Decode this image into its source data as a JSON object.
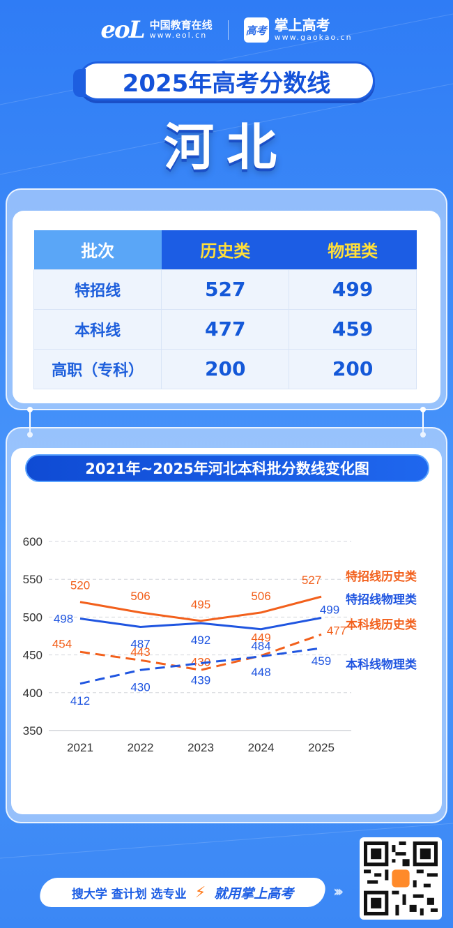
{
  "header": {
    "eol_mark": "eoL",
    "eol_cn": "中国教育在线",
    "eol_en": "www.eol.cn",
    "gk_badge": "高考",
    "gk_cn": "掌上高考",
    "gk_en": "www.gaokao.cn"
  },
  "title": "2025年高考分数线",
  "province": "河北",
  "table": {
    "headers": [
      "批次",
      "历史类",
      "物理类"
    ],
    "rows": [
      [
        "特招线",
        "527",
        "499"
      ],
      [
        "本科线",
        "477",
        "459"
      ],
      [
        "高职（专科）",
        "200",
        "200"
      ]
    ]
  },
  "chart_title": "2021年~2025年河北本科批分数线变化图",
  "chart_data": {
    "type": "line",
    "x": [
      "2021",
      "2022",
      "2023",
      "2024",
      "2025"
    ],
    "ylim": [
      350,
      600
    ],
    "yticks": [
      350,
      400,
      450,
      500,
      550,
      600
    ],
    "grid": true,
    "legend": "right",
    "series": [
      {
        "name": "特招线历史类",
        "values": [
          520,
          506,
          495,
          506,
          527
        ],
        "color": "#f2601c",
        "style": "solid"
      },
      {
        "name": "特招线物理类",
        "values": [
          498,
          487,
          492,
          484,
          499
        ],
        "color": "#1f55e0",
        "style": "solid"
      },
      {
        "name": "本科线历史类",
        "values": [
          454,
          443,
          430,
          449,
          477
        ],
        "color": "#f2601c",
        "style": "dashed"
      },
      {
        "name": "本科线物理类",
        "values": [
          412,
          430,
          439,
          448,
          459
        ],
        "color": "#1f55e0",
        "style": "dashed"
      }
    ]
  },
  "footer": {
    "left": "搜大学  查计划  选专业",
    "right": "就用掌上高考"
  }
}
